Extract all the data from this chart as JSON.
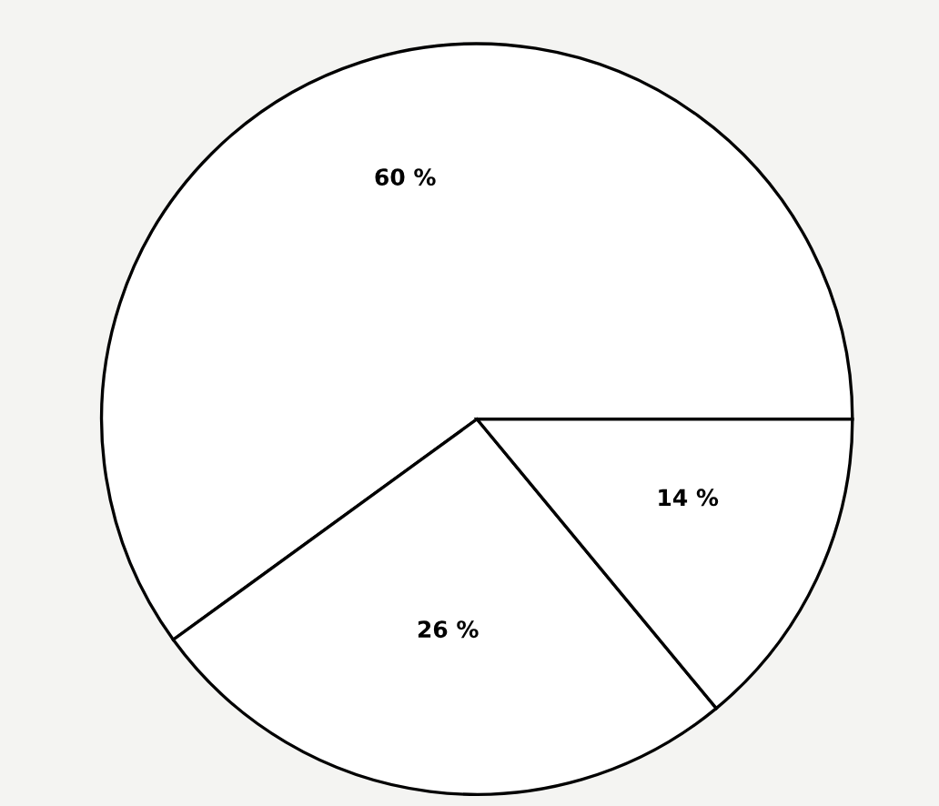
{
  "chart_data": {
    "type": "pie",
    "categories": [
      null,
      null,
      null
    ],
    "values": [
      60,
      26,
      14
    ],
    "colors": [
      "#ffffff",
      "#ffffff",
      "#ffffff"
    ],
    "value_labels": [
      "60 %",
      "26 %",
      "14 %"
    ]
  }
}
